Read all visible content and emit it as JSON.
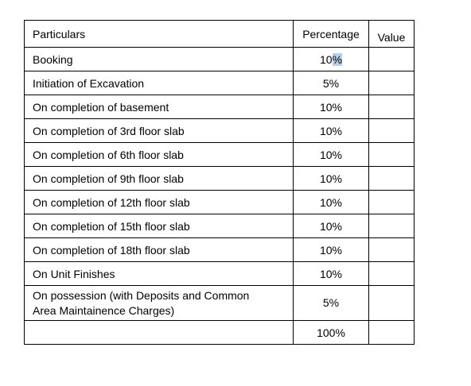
{
  "table": {
    "headers": {
      "particulars": "Particulars",
      "percentage": "Percentage",
      "value": "Value"
    },
    "rows": [
      {
        "particulars": "Booking",
        "percentage": "10%",
        "value": ""
      },
      {
        "particulars": "Initiation of Excavation",
        "percentage": "5%",
        "value": ""
      },
      {
        "particulars": "On completion of basement",
        "percentage": "10%",
        "value": ""
      },
      {
        "particulars": "On completion of 3rd floor slab",
        "percentage": "10%",
        "value": ""
      },
      {
        "particulars": "On completion of 6th floor slab",
        "percentage": "10%",
        "value": ""
      },
      {
        "particulars": "On completion of 9th floor slab",
        "percentage": "10%",
        "value": ""
      },
      {
        "particulars": "On completion of 12th floor slab",
        "percentage": "10%",
        "value": ""
      },
      {
        "particulars": "On completion of 15th floor slab",
        "percentage": "10%",
        "value": ""
      },
      {
        "particulars": "On completion of 18th floor slab",
        "percentage": "10%",
        "value": ""
      },
      {
        "particulars": "On Unit Finishes",
        "percentage": "10%",
        "value": ""
      },
      {
        "particulars_line1": "On possession (with Deposits and Common",
        "particulars_line2": "Area Maintainence Charges)",
        "percentage": "5%",
        "value": ""
      }
    ],
    "total": {
      "particulars": "",
      "percentage": "100%",
      "value": ""
    },
    "selection": {
      "text_before": "10",
      "selected_text": "%"
    }
  }
}
